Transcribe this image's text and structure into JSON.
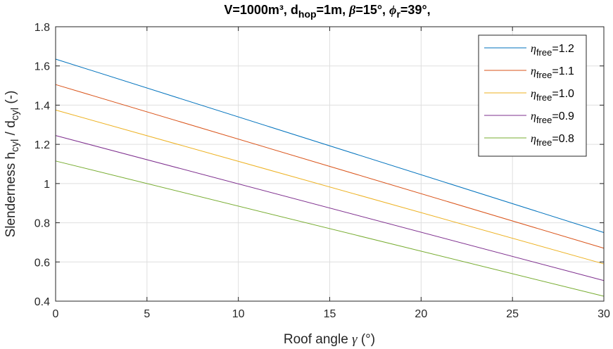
{
  "chart_data": {
    "type": "line",
    "title": {
      "prefix": "V=1000m³, d",
      "sub1": "hop",
      "mid1": "=1m, ",
      "beta": "β",
      "mid2": "=15°, ",
      "phi": "ϕ",
      "sub2": "r",
      "suffix": "=39°,"
    },
    "xlabel": {
      "text": "Roof angle ",
      "greek": "γ",
      "unit": " (°)"
    },
    "ylabel": {
      "a": "Slenderness h",
      "sub1": "cyl",
      "b": " / d",
      "sub2": "cyl",
      "c": " (-)"
    },
    "xlim": [
      0,
      30
    ],
    "ylim": [
      0.4,
      1.8
    ],
    "xticks": [
      "0",
      "5",
      "10",
      "15",
      "20",
      "25",
      "30"
    ],
    "yticks": [
      "0.4",
      "0.6",
      "0.8",
      "1",
      "1.2",
      "1.4",
      "1.6",
      "1.8"
    ],
    "grid": true,
    "legend_position": "top-right",
    "legend_symbol": "η",
    "legend_subscript": "free",
    "x": [
      0,
      30
    ],
    "series": [
      {
        "name": "=1.2",
        "color": "#0072BD",
        "values": [
          1.635,
          0.75
        ]
      },
      {
        "name": "=1.1",
        "color": "#D95319",
        "values": [
          1.505,
          0.67
        ]
      },
      {
        "name": "=1.0",
        "color": "#EDB120",
        "values": [
          1.375,
          0.59
        ]
      },
      {
        "name": "=0.9",
        "color": "#7E2F8E",
        "values": [
          1.245,
          0.505
        ]
      },
      {
        "name": "=0.8",
        "color": "#77AC30",
        "values": [
          1.115,
          0.425
        ]
      }
    ]
  }
}
